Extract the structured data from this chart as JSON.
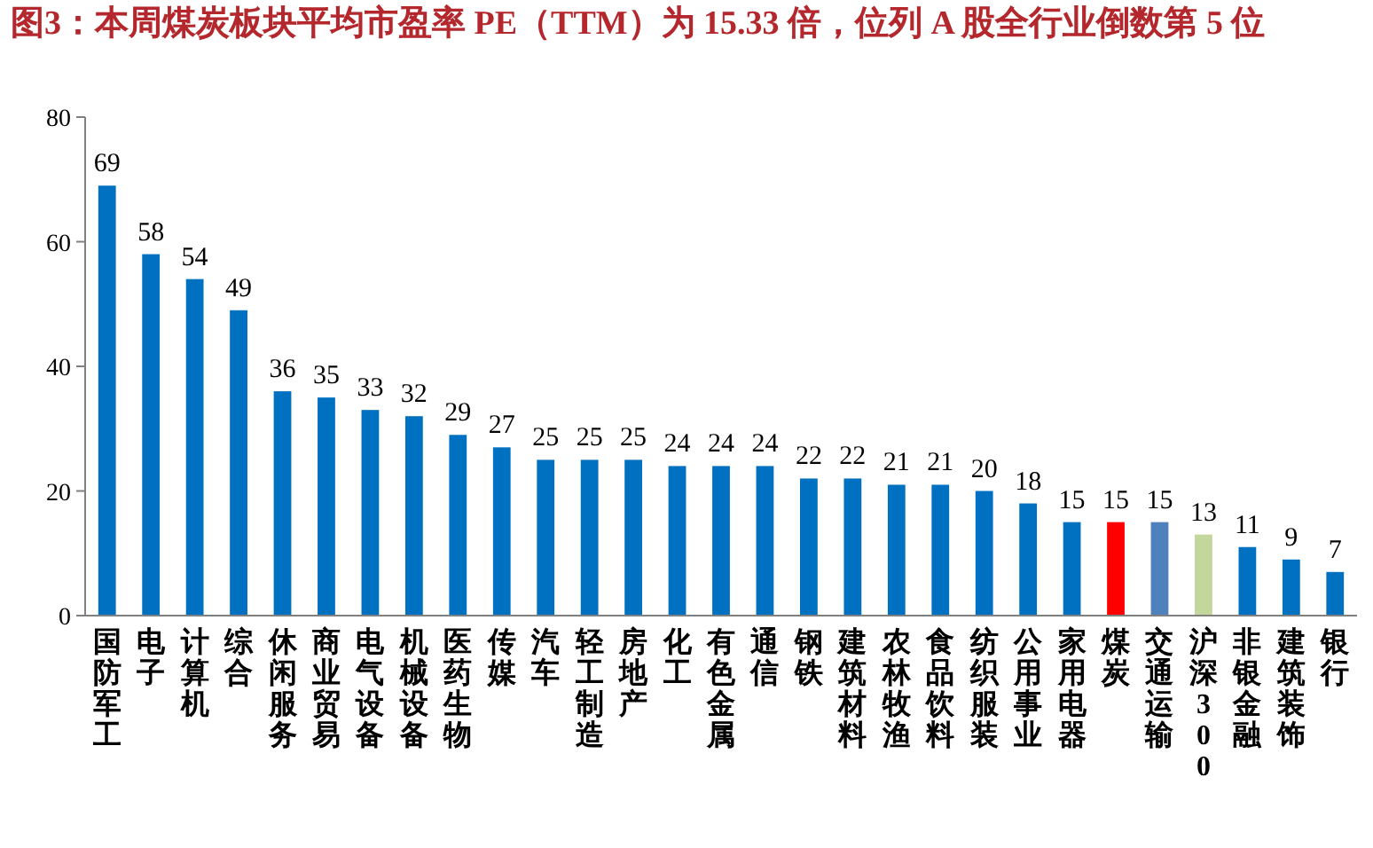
{
  "chart_data": {
    "type": "bar",
    "title": "图3：本周煤炭板块平均市盈率 PE（TTM）为 15.33 倍，位列 A 股全行业倒数第 5 位",
    "categories": [
      "国防军工",
      "电子",
      "计算机",
      "综合",
      "休闲服务",
      "商业贸易",
      "电气设备",
      "机械设备",
      "医药生物",
      "传媒",
      "汽车",
      "轻工制造",
      "房地产",
      "化工",
      "有色金属",
      "通信",
      "钢铁",
      "建筑材料",
      "农林牧渔",
      "食品饮料",
      "纺织服装",
      "公用事业",
      "家用电器",
      "煤炭",
      "交通运输",
      "沪深300",
      "非银金融",
      "建筑装饰",
      "银行"
    ],
    "values": [
      69,
      58,
      54,
      49,
      36,
      35,
      33,
      32,
      29,
      27,
      25,
      25,
      25,
      24,
      24,
      24,
      22,
      22,
      21,
      21,
      20,
      18,
      15,
      15,
      15,
      13,
      11,
      9,
      7
    ],
    "colors": [
      "#0070c0",
      "#0070c0",
      "#0070c0",
      "#0070c0",
      "#0070c0",
      "#0070c0",
      "#0070c0",
      "#0070c0",
      "#0070c0",
      "#0070c0",
      "#0070c0",
      "#0070c0",
      "#0070c0",
      "#0070c0",
      "#0070c0",
      "#0070c0",
      "#0070c0",
      "#0070c0",
      "#0070c0",
      "#0070c0",
      "#0070c0",
      "#0070c0",
      "#0070c0",
      "#ff0000",
      "#4f81bd",
      "#c3d69b",
      "#0070c0",
      "#0070c0",
      "#0070c0"
    ],
    "ylim": [
      0,
      80
    ],
    "yticks": [
      0,
      20,
      40,
      60,
      80
    ],
    "data_labels": true,
    "grid": false
  }
}
